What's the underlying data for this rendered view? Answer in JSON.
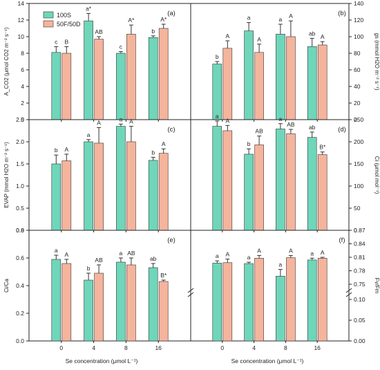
{
  "figure": {
    "xlabel_left": "Se concentration (μmol L⁻¹)",
    "xlabel_right": "Se concentration (μmol L⁻¹)"
  },
  "colors": {
    "s100": "#6fd6b9",
    "s50": "#f5b49c",
    "edge": "#333333"
  },
  "legend": {
    "items": [
      "100S",
      "50F/50D"
    ]
  },
  "chart_data": [
    {
      "id": "a",
      "type": "bar",
      "panel_label": "(a)",
      "categories": [
        "0",
        "4",
        "8",
        "16"
      ],
      "ylabel": "A_CO2 (μmol CO2 m⁻² s⁻¹)",
      "ylim": [
        0,
        14
      ],
      "yticks": [
        "0",
        "2",
        "4",
        "6",
        "8",
        "10",
        "12",
        "14"
      ],
      "axis_side": "left",
      "series": [
        {
          "name": "100S",
          "values": [
            8.1,
            11.9,
            8.0,
            9.9
          ],
          "errors": [
            0.7,
            0.9,
            0.2,
            0.2
          ],
          "labels": [
            "c",
            "a*",
            "c",
            "b"
          ]
        },
        {
          "name": "50F/50D",
          "values": [
            8.0,
            9.7,
            10.3,
            11.0
          ],
          "errors": [
            0.8,
            0.3,
            1.1,
            0.5
          ],
          "labels": [
            "B",
            "AB",
            "A*",
            "A*"
          ]
        }
      ]
    },
    {
      "id": "b",
      "type": "bar",
      "panel_label": "(b)",
      "categories": [
        "0",
        "4",
        "8",
        "16"
      ],
      "ylabel": "gs (mmol H2O m⁻² s⁻¹)",
      "ylim": [
        0,
        140
      ],
      "yticks": [
        "0",
        "20",
        "40",
        "60",
        "80",
        "100",
        "120",
        "140"
      ],
      "axis_side": "right",
      "series": [
        {
          "name": "100S",
          "values": [
            67,
            107,
            103,
            88
          ],
          "errors": [
            3,
            10,
            12,
            10
          ],
          "labels": [
            "b",
            "a",
            "a",
            "ab"
          ]
        },
        {
          "name": "50F/50D",
          "values": [
            86,
            81,
            100,
            90
          ],
          "errors": [
            9,
            10,
            19,
            4
          ],
          "labels": [
            "A",
            "A",
            "A",
            "A"
          ]
        }
      ]
    },
    {
      "id": "c",
      "type": "bar",
      "panel_label": "(c)",
      "categories": [
        "0",
        "4",
        "8",
        "16"
      ],
      "ylabel": "EVAP (mmol H2O m⁻² s⁻¹)",
      "ylim": [
        0,
        2.5
      ],
      "yticks": [
        "0.0",
        "0.5",
        "1.0",
        "1.5",
        "2.0",
        "2.5"
      ],
      "axis_side": "left",
      "series": [
        {
          "name": "100S",
          "values": [
            1.5,
            2.0,
            2.35,
            1.58
          ],
          "errors": [
            0.2,
            0.05,
            0.05,
            0.07
          ],
          "labels": [
            "b",
            "a",
            "a",
            "b"
          ]
        },
        {
          "name": "50F/50D",
          "values": [
            1.57,
            1.97,
            2.0,
            1.74
          ],
          "errors": [
            0.15,
            0.35,
            0.35,
            0.1
          ],
          "labels": [
            "A",
            "A",
            "A",
            "A"
          ]
        }
      ]
    },
    {
      "id": "d",
      "type": "bar",
      "panel_label": "(d)",
      "categories": [
        "0",
        "4",
        "8",
        "16"
      ],
      "ylabel": "Ci (μmol mol⁻¹)",
      "ylim": [
        0,
        250
      ],
      "yticks": [
        "0",
        "50",
        "100",
        "150",
        "200",
        "250"
      ],
      "axis_side": "right",
      "series": [
        {
          "name": "100S",
          "values": [
            235,
            172,
            229,
            210
          ],
          "errors": [
            12,
            12,
            12,
            12
          ],
          "labels": [
            "a",
            "b",
            "a",
            "ab"
          ]
        },
        {
          "name": "50F/50D",
          "values": [
            225,
            193,
            218,
            171
          ],
          "errors": [
            12,
            20,
            10,
            6
          ],
          "labels": [
            "A",
            "AB",
            "AB",
            "B*"
          ]
        }
      ]
    },
    {
      "id": "e",
      "type": "bar",
      "panel_label": "(e)",
      "categories": [
        "0",
        "4",
        "8",
        "16"
      ],
      "ylabel": "Ci/Ca",
      "ylim": [
        0,
        0.8
      ],
      "yticks": [
        "0.0",
        "0.2",
        "0.4",
        "0.6",
        "0.8"
      ],
      "axis_side": "left",
      "series": [
        {
          "name": "100S",
          "values": [
            0.59,
            0.44,
            0.57,
            0.53
          ],
          "errors": [
            0.03,
            0.05,
            0.03,
            0.03
          ],
          "labels": [
            "a",
            "b",
            "a",
            "ab"
          ]
        },
        {
          "name": "50F/50D",
          "values": [
            0.56,
            0.49,
            0.55,
            0.43
          ],
          "errors": [
            0.03,
            0.06,
            0.05,
            0.01
          ],
          "labels": [
            "A",
            "AB",
            "AB",
            "B*"
          ]
        }
      ]
    },
    {
      "id": "f",
      "type": "bar",
      "panel_label": "(f)",
      "categories": [
        "0",
        "4",
        "8",
        "16"
      ],
      "ylabel": "Fv/Fm",
      "broken_axis": true,
      "ylim_lower": [
        0,
        0.1
      ],
      "ylim_upper": [
        0.75,
        0.87
      ],
      "yticks_lower": [
        "0.00",
        "0.05",
        "0.10"
      ],
      "yticks_upper": [
        "0.75",
        "0.78",
        "0.81",
        "0.84",
        "0.87"
      ],
      "axis_side": "right",
      "series": [
        {
          "name": "100S",
          "values": [
            0.797,
            0.796,
            0.768,
            0.804
          ],
          "errors": [
            0.005,
            0.003,
            0.015,
            0.004
          ],
          "labels": [
            "a",
            "a",
            "a",
            "a"
          ]
        },
        {
          "name": "50F/50D",
          "values": [
            0.798,
            0.808,
            0.809,
            0.808
          ],
          "errors": [
            0.008,
            0.006,
            0.005,
            0.002
          ],
          "labels": [
            "A",
            "A",
            "A",
            "A"
          ]
        }
      ]
    }
  ]
}
